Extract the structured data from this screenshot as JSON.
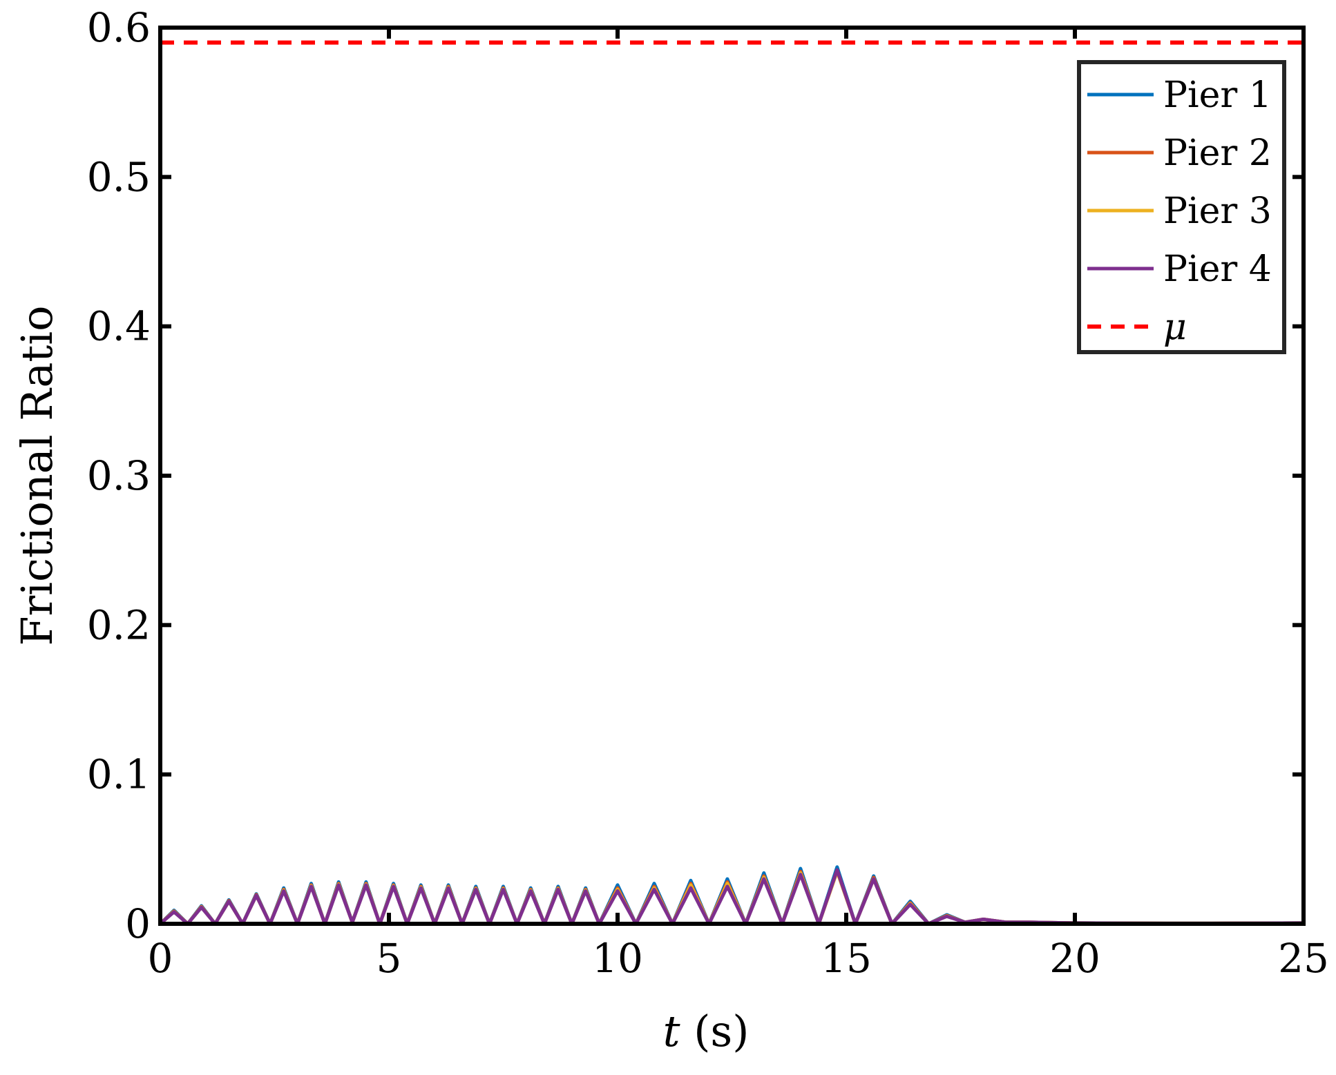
{
  "chart_data": {
    "type": "line",
    "title": "",
    "xlabel_var": "t",
    "xlabel_unit": " (s)",
    "ylabel": "Frictional Ratio",
    "xlim": [
      0,
      25
    ],
    "ylim": [
      0,
      0.6
    ],
    "x_ticks": [
      "0",
      "5",
      "10",
      "15",
      "20",
      "25"
    ],
    "y_ticks": [
      "0",
      "0.1",
      "0.2",
      "0.3",
      "0.4",
      "0.5",
      "0.6"
    ],
    "grid": false,
    "legend_position": "top-right",
    "series": [
      {
        "name": "Pier 1",
        "color": "#0072BD",
        "x": [
          0,
          0.3,
          0.6,
          0.9,
          1.2,
          1.5,
          1.8,
          2.1,
          2.4,
          2.7,
          3.0,
          3.3,
          3.6,
          3.9,
          4.2,
          4.5,
          4.8,
          5.1,
          5.4,
          5.7,
          6.0,
          6.3,
          6.6,
          6.9,
          7.2,
          7.5,
          7.8,
          8.1,
          8.4,
          8.7,
          9.0,
          9.3,
          9.6,
          10.0,
          10.4,
          10.8,
          11.2,
          11.6,
          12.0,
          12.4,
          12.8,
          13.2,
          13.6,
          14.0,
          14.4,
          14.8,
          15.2,
          15.6,
          16.0,
          16.4,
          16.8,
          17.2,
          17.6,
          18.0,
          18.5,
          19.0,
          20.0,
          21.0,
          22.0,
          23.0,
          24.0,
          25.0
        ],
        "y": [
          0,
          0.009,
          0,
          0.012,
          0,
          0.016,
          0,
          0.02,
          0,
          0.024,
          0,
          0.027,
          0,
          0.028,
          0.001,
          0.028,
          0,
          0.027,
          0,
          0.026,
          0,
          0.026,
          0,
          0.025,
          0,
          0.025,
          0,
          0.024,
          0,
          0.025,
          0,
          0.024,
          0,
          0.026,
          0,
          0.027,
          0,
          0.029,
          0,
          0.03,
          0,
          0.034,
          0,
          0.037,
          0,
          0.038,
          0,
          0.032,
          0,
          0.015,
          0,
          0.006,
          0.001,
          0.003,
          0.001,
          0.001,
          0.0005,
          0.0004,
          0.0003,
          0.0003,
          0.0004,
          0.0005
        ]
      },
      {
        "name": "Pier 2",
        "color": "#D95319",
        "x": [
          0,
          0.3,
          0.6,
          0.9,
          1.2,
          1.5,
          1.8,
          2.1,
          2.4,
          2.7,
          3.0,
          3.3,
          3.6,
          3.9,
          4.2,
          4.5,
          4.8,
          5.1,
          5.4,
          5.7,
          6.0,
          6.3,
          6.6,
          6.9,
          7.2,
          7.5,
          7.8,
          8.1,
          8.4,
          8.7,
          9.0,
          9.3,
          9.6,
          10.0,
          10.4,
          10.8,
          11.2,
          11.6,
          12.0,
          12.4,
          12.8,
          13.2,
          13.6,
          14.0,
          14.4,
          14.8,
          15.2,
          15.6,
          16.0,
          16.4,
          16.8,
          17.2,
          17.6,
          18.0,
          18.5,
          19.0,
          20.0,
          21.0,
          22.0,
          23.0,
          24.0,
          25.0
        ],
        "y": [
          0,
          0.0085,
          0,
          0.0115,
          0,
          0.0155,
          0,
          0.0195,
          0,
          0.023,
          0,
          0.026,
          0,
          0.027,
          0.001,
          0.027,
          0,
          0.026,
          0,
          0.025,
          0,
          0.025,
          0,
          0.024,
          0,
          0.024,
          0,
          0.023,
          0,
          0.024,
          0,
          0.023,
          0,
          0.024,
          0,
          0.025,
          0,
          0.027,
          0,
          0.028,
          0,
          0.032,
          0,
          0.035,
          0,
          0.036,
          0,
          0.031,
          0,
          0.014,
          0,
          0.0055,
          0.001,
          0.003,
          0.001,
          0.001,
          0.0005,
          0.0004,
          0.0003,
          0.0003,
          0.0004,
          0.0005
        ]
      },
      {
        "name": "Pier 3",
        "color": "#EDB120",
        "x": [
          0,
          0.3,
          0.6,
          0.9,
          1.2,
          1.5,
          1.8,
          2.1,
          2.4,
          2.7,
          3.0,
          3.3,
          3.6,
          3.9,
          4.2,
          4.5,
          4.8,
          5.1,
          5.4,
          5.7,
          6.0,
          6.3,
          6.6,
          6.9,
          7.2,
          7.5,
          7.8,
          8.1,
          8.4,
          8.7,
          9.0,
          9.3,
          9.6,
          10.0,
          10.4,
          10.8,
          11.2,
          11.6,
          12.0,
          12.4,
          12.8,
          13.2,
          13.6,
          14.0,
          14.4,
          14.8,
          15.2,
          15.6,
          16.0,
          16.4,
          16.8,
          17.2,
          17.6,
          18.0,
          18.5,
          19.0,
          20.0,
          21.0,
          22.0,
          23.0,
          24.0,
          25.0
        ],
        "y": [
          0,
          0.0082,
          0,
          0.0112,
          0,
          0.015,
          0,
          0.019,
          0,
          0.0225,
          0,
          0.0255,
          0,
          0.0265,
          0.001,
          0.0265,
          0,
          0.0255,
          0,
          0.0245,
          0,
          0.0245,
          0,
          0.0235,
          0,
          0.0235,
          0,
          0.0225,
          0,
          0.0235,
          0,
          0.0225,
          0,
          0.023,
          0,
          0.024,
          0,
          0.026,
          0,
          0.027,
          0,
          0.031,
          0,
          0.034,
          0,
          0.035,
          0,
          0.03,
          0,
          0.0135,
          0,
          0.0052,
          0.001,
          0.003,
          0.001,
          0.001,
          0.0005,
          0.0004,
          0.0003,
          0.0003,
          0.0004,
          0.0005
        ]
      },
      {
        "name": "Pier 4",
        "color": "#7E2F8E",
        "x": [
          0,
          0.3,
          0.6,
          0.9,
          1.2,
          1.5,
          1.8,
          2.1,
          2.4,
          2.7,
          3.0,
          3.3,
          3.6,
          3.9,
          4.2,
          4.5,
          4.8,
          5.1,
          5.4,
          5.7,
          6.0,
          6.3,
          6.6,
          6.9,
          7.2,
          7.5,
          7.8,
          8.1,
          8.4,
          8.7,
          9.0,
          9.3,
          9.6,
          10.0,
          10.4,
          10.8,
          11.2,
          11.6,
          12.0,
          12.4,
          12.8,
          13.2,
          13.6,
          14.0,
          14.4,
          14.8,
          15.2,
          15.6,
          16.0,
          16.4,
          16.8,
          17.2,
          17.6,
          18.0,
          18.5,
          19.0,
          20.0,
          21.0,
          22.0,
          23.0,
          24.0,
          25.0
        ],
        "y": [
          0,
          0.008,
          0,
          0.011,
          0,
          0.015,
          0,
          0.019,
          0,
          0.022,
          0,
          0.025,
          0,
          0.026,
          0.001,
          0.026,
          0,
          0.025,
          0,
          0.024,
          0,
          0.024,
          0,
          0.023,
          0,
          0.023,
          0,
          0.022,
          0,
          0.023,
          0,
          0.022,
          0,
          0.022,
          0,
          0.023,
          0,
          0.024,
          0,
          0.025,
          0,
          0.03,
          0,
          0.033,
          0,
          0.036,
          0,
          0.03,
          0,
          0.013,
          0,
          0.005,
          0.001,
          0.003,
          0.001,
          0.001,
          0.0005,
          0.0004,
          0.0003,
          0.0003,
          0.0004,
          0.0005
        ]
      },
      {
        "name": "μ",
        "color": "#FF0000",
        "dashed": true,
        "x": [
          0,
          25
        ],
        "y": [
          0.59,
          0.59
        ]
      }
    ]
  }
}
